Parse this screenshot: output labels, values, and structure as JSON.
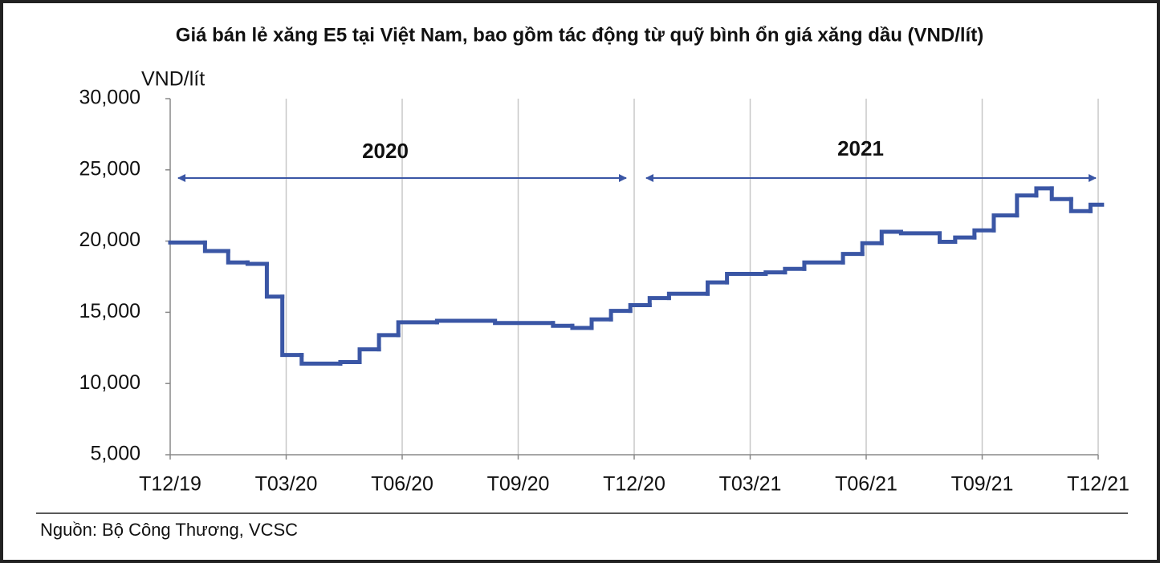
{
  "chart_data": {
    "type": "step",
    "title": "Giá bán lẻ xăng E5 tại Việt Nam, bao gồm tác động từ quỹ bình ổn giá xăng dầu (VND/lít)",
    "y_label": "VND/lít",
    "source": "Nguồn: Bộ Công Thương, VCSC",
    "annotations": [
      "2020",
      "2021"
    ],
    "series": [
      {
        "name": "E5",
        "color": "#3a56a5",
        "x": [
          0,
          0.9,
          1.5,
          2.0,
          2.5,
          2.9,
          3.4,
          4.4,
          4.9,
          5.4,
          5.9,
          6.9,
          8.4,
          9.9,
          10.4,
          10.9,
          11.4,
          11.9,
          12.4,
          12.9,
          13.9,
          14.4,
          15.4,
          15.9,
          16.4,
          17.4,
          17.9,
          18.4,
          18.9,
          19.9,
          20.3,
          20.8,
          21.3,
          21.9,
          22.4,
          22.8,
          23.3,
          23.8
        ],
        "values": [
          19900,
          19300,
          18500,
          18400,
          16100,
          12000,
          11400,
          11500,
          12400,
          13400,
          14300,
          14400,
          14250,
          14050,
          13900,
          14500,
          15100,
          15500,
          16000,
          16300,
          17100,
          17700,
          17800,
          18050,
          18500,
          19100,
          19850,
          20650,
          20550,
          19950,
          20250,
          20750,
          21800,
          23200,
          23700,
          22950,
          22100,
          22550
        ]
      }
    ],
    "xlim": [
      0,
      24.1
    ],
    "xticks": [
      {
        "value": 0,
        "label": "T12/19"
      },
      {
        "value": 3,
        "label": "T03/20"
      },
      {
        "value": 6,
        "label": "T06/20"
      },
      {
        "value": 9,
        "label": "T09/20"
      },
      {
        "value": 12,
        "label": "T12/20"
      },
      {
        "value": 15,
        "label": "T03/21"
      },
      {
        "value": 18,
        "label": "T06/21"
      },
      {
        "value": 21,
        "label": "T09/21"
      },
      {
        "value": 24,
        "label": "T12/21"
      }
    ],
    "ylim": [
      5000,
      30000
    ],
    "yticks": [
      {
        "value": 5000,
        "label": "5,000"
      },
      {
        "value": 10000,
        "label": "10,000"
      },
      {
        "value": 15000,
        "label": "15,000"
      },
      {
        "value": 20000,
        "label": "20,000"
      },
      {
        "value": 25000,
        "label": "25,000"
      },
      {
        "value": 30000,
        "label": "30,000"
      }
    ],
    "grid": true
  }
}
